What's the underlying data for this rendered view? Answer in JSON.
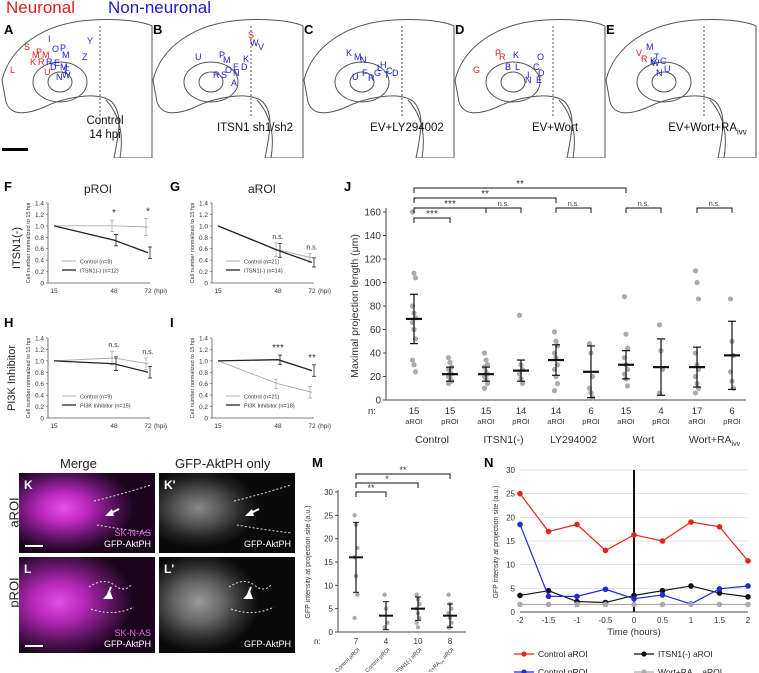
{
  "header": {
    "neuronal": "Neuronal",
    "non_neuronal": "Non-neuronal"
  },
  "colors": {
    "neuronal": "#e0201b",
    "non_neuronal": "#1a1ad6",
    "control_aroi": "#e8231c",
    "itsn1_aroi": "#111111",
    "control_proi": "#1f2bd8",
    "wort_ra_aroi": "#aaaaaa",
    "sknas": "#e23be8"
  },
  "panel_labels": {
    "A": "A",
    "B": "B",
    "C": "C",
    "D": "D",
    "E": "E",
    "F": "F",
    "G": "G",
    "H": "H",
    "I": "I",
    "J": "J",
    "K": "K",
    "Kp": "K'",
    "L": "L",
    "Lp": "L'",
    "M": "M",
    "N": "N"
  },
  "embryos": [
    {
      "line1": "Control",
      "line2": "14 hpi"
    },
    {
      "line1": "ITSN1 sh1/sh2",
      "line2": ""
    },
    {
      "line1": "EV+LY294002",
      "line2": ""
    },
    {
      "line1": "EV+Wort",
      "line2": ""
    },
    {
      "line1": "EV+Wort+RA",
      "sub": "ivv"
    }
  ],
  "embryo_letters": {
    "A": {
      "red": [
        "L",
        "S",
        "M",
        "P",
        "R",
        "K",
        "M",
        "U"
      ],
      "blue": [
        "I",
        "O",
        "P",
        "M",
        "Y",
        "Z",
        "R",
        "E",
        "D",
        "M",
        "W",
        "F",
        "N"
      ]
    },
    "B": {
      "red": [
        "S"
      ],
      "blue": [
        "U",
        "W",
        "V",
        "M",
        "P",
        "O",
        "R",
        "S",
        "K",
        "E",
        "A",
        "N",
        "D"
      ]
    },
    "C": {
      "red": [],
      "blue": [
        "K",
        "M",
        "N",
        "R",
        "U",
        "F",
        "T",
        "G",
        "D",
        "L",
        "C",
        "H"
      ]
    },
    "D": {
      "red": [
        "G",
        "P",
        "R"
      ],
      "blue": [
        "B",
        "K",
        "O",
        "L",
        "C",
        "D",
        "E",
        "N",
        "I"
      ]
    },
    "E": {
      "red": [
        "V",
        "R"
      ],
      "blue": [
        "M",
        "T",
        "C",
        "W",
        "U",
        "N",
        "K"
      ]
    }
  },
  "small_charts": {
    "x_ticks": [
      "15",
      "48",
      "72"
    ],
    "x_unit": "(hpi)",
    "y_ticks": [
      "0",
      "0.2",
      "0.4",
      "0.6",
      "0.8",
      "1.0",
      "1.2",
      "1.4"
    ],
    "ylabel": "Cell number normalized to 15 hpi",
    "F": {
      "title": "pROI",
      "row_label": "ITSN1(-)",
      "legend": [
        "Control (n=9)",
        "ITSN1(-) (n=12)"
      ],
      "sig": [
        "*",
        "*"
      ]
    },
    "G": {
      "title": "aROI",
      "legend": [
        "Control (n=21)",
        "ITSN1(-) (n=14)"
      ],
      "sig": [
        "n.s.",
        "n.s."
      ]
    },
    "H": {
      "row_label": "PI3K Inhibitor",
      "legend": [
        "Control (n=9)",
        "PI3K Inhibitor (n=15)"
      ],
      "sig": [
        "n.s.",
        "n.s."
      ]
    },
    "I": {
      "legend": [
        "Control (n=21)",
        "PI3K Inhibitor (n=18)"
      ],
      "sig": [
        "***",
        "**"
      ]
    }
  },
  "chart_data": [
    {
      "id": "F",
      "type": "line",
      "x": [
        15,
        48,
        72
      ],
      "ylim": [
        0,
        1.4
      ],
      "series": [
        {
          "name": "Control (n=9)",
          "values": [
            1.0,
            1.0,
            0.98
          ],
          "err": [
            0,
            0.1,
            0.15
          ]
        },
        {
          "name": "ITSN1(-) (n=12)",
          "values": [
            1.0,
            0.75,
            0.53
          ],
          "err": [
            0,
            0.1,
            0.1
          ]
        }
      ]
    },
    {
      "id": "G",
      "type": "line",
      "x": [
        15,
        48,
        72
      ],
      "ylim": [
        0,
        1.4
      ],
      "series": [
        {
          "name": "Control (n=21)",
          "values": [
            1.0,
            0.58,
            0.44
          ],
          "err": [
            0,
            0.12,
            0.08
          ]
        },
        {
          "name": "ITSN1(-) (n=14)",
          "values": [
            1.0,
            0.57,
            0.36
          ],
          "err": [
            0,
            0.12,
            0.08
          ]
        }
      ]
    },
    {
      "id": "H",
      "type": "line",
      "x": [
        15,
        48,
        72
      ],
      "ylim": [
        0,
        1.4
      ],
      "series": [
        {
          "name": "Control (n=9)",
          "values": [
            1.0,
            1.05,
            0.95
          ],
          "err": [
            0,
            0.12,
            0.1
          ]
        },
        {
          "name": "PI3K Inhibitor (n=15)",
          "values": [
            1.0,
            0.95,
            0.8
          ],
          "err": [
            0,
            0.12,
            0.1
          ]
        }
      ]
    },
    {
      "id": "I",
      "type": "line",
      "x": [
        15,
        48,
        72
      ],
      "ylim": [
        0,
        1.4
      ],
      "series": [
        {
          "name": "Control (n=21)",
          "values": [
            1.0,
            0.6,
            0.45
          ],
          "err": [
            0,
            0.08,
            0.1
          ]
        },
        {
          "name": "PI3K Inhibitor (n=18)",
          "values": [
            1.0,
            1.02,
            0.83
          ],
          "err": [
            0,
            0.08,
            0.1
          ]
        }
      ]
    },
    {
      "id": "J",
      "type": "scatter",
      "ylabel": "Maximal projection length (μm)",
      "ylim": [
        0,
        160
      ],
      "y_ticks": [
        "0",
        "20",
        "40",
        "60",
        "80",
        "100",
        "120",
        "140",
        "160"
      ],
      "n_label": "n:",
      "groups": [
        {
          "n": "15",
          "roi": "aROI",
          "mean": 69,
          "sd": 21,
          "points": [
            160,
            108,
            104,
            80,
            74,
            70,
            66,
            60,
            52,
            34,
            30,
            24
          ]
        },
        {
          "n": "15",
          "roi": "pROI",
          "mean": 22,
          "sd": 6,
          "points": [
            36,
            32,
            28,
            26,
            24,
            22,
            20,
            18,
            16,
            14
          ]
        },
        {
          "n": "15",
          "roi": "aROI",
          "mean": 22,
          "sd": 6,
          "points": [
            40,
            34,
            30,
            28,
            24,
            22,
            20,
            18,
            14,
            10
          ]
        },
        {
          "n": "14",
          "roi": "pROI",
          "mean": 25,
          "sd": 9,
          "points": [
            72,
            30,
            26,
            22,
            18,
            14
          ]
        },
        {
          "n": "14",
          "roi": "aROI",
          "mean": 34,
          "sd": 13,
          "points": [
            58,
            50,
            46,
            40,
            36,
            30,
            26,
            20,
            14,
            8
          ]
        },
        {
          "n": "6",
          "roi": "pROI",
          "mean": 24,
          "sd": 22,
          "points": [
            48,
            40,
            20,
            10,
            6,
            2
          ]
        },
        {
          "n": "15",
          "roi": "aROI",
          "mean": 30,
          "sd": 12,
          "points": [
            88,
            56,
            44,
            36,
            30,
            26,
            22,
            18,
            12
          ]
        },
        {
          "n": "4",
          "roi": "pROI",
          "mean": 28,
          "sd": 24,
          "points": [
            64,
            42,
            26,
            6
          ]
        },
        {
          "n": "17",
          "roi": "aROI",
          "mean": 28,
          "sd": 17,
          "points": [
            110,
            100,
            86,
            40,
            30,
            26,
            20,
            14,
            10,
            6
          ]
        },
        {
          "n": "6",
          "roi": "pROI",
          "mean": 38,
          "sd": 29,
          "points": [
            86,
            50,
            38,
            24,
            16,
            10
          ]
        }
      ],
      "group_labels": [
        "Control",
        "ITSN1(-)",
        "LY294002",
        "Wort",
        "Wort+RA"
      ],
      "group_label_sub": "ivv",
      "brackets": [
        {
          "label": "**",
          "level": 5
        },
        {
          "label": "**",
          "level": 4
        },
        {
          "label": "***",
          "level": 3
        },
        {
          "label": "***",
          "level": 2
        }
      ],
      "pair_sig": [
        "***",
        "n.s.",
        "n.s.",
        "n.s.",
        "n.s."
      ]
    },
    {
      "id": "M",
      "type": "scatter",
      "ylabel": "GFP intensity at projection site (a.u.)",
      "ylim": [
        0,
        30
      ],
      "y_ticks": [
        "0",
        "5",
        "10",
        "15",
        "20",
        "25",
        "30"
      ],
      "n_label": "n:",
      "groups": [
        {
          "n": "7",
          "name": "Control aROI",
          "mean": 16,
          "sd": 7.5,
          "points": [
            25,
            23,
            18,
            16,
            12,
            8,
            3
          ]
        },
        {
          "n": "4",
          "name": "Control pROI",
          "mean": 3.5,
          "sd": 3,
          "points": [
            8,
            5,
            2,
            1
          ]
        },
        {
          "n": "10",
          "name": "ITSN1(-) aROI",
          "mean": 5,
          "sd": 2.5,
          "points": [
            8,
            7,
            6,
            5,
            4,
            3,
            2,
            1
          ]
        },
        {
          "n": "8",
          "name": "Wort+RA",
          "sub": "ivv",
          "suffix": " aROI",
          "mean": 3.5,
          "sd": 2.5,
          "points": [
            8,
            6,
            5,
            4,
            3,
            2,
            1,
            1
          ]
        }
      ],
      "brackets": [
        "**",
        "*",
        "**"
      ]
    },
    {
      "id": "N",
      "type": "line",
      "xlabel": "Time (hours)",
      "ylabel": "GFP intensity at projection site (a.u.)",
      "ylim": [
        0,
        30
      ],
      "x": [
        -2,
        -1.5,
        -1,
        -0.5,
        0,
        0.5,
        1,
        1.5,
        2
      ],
      "x_ticks": [
        "-2",
        "-1.5",
        "-1",
        "-0.5",
        "0",
        "0.5",
        "1",
        "1.5",
        "2"
      ],
      "y_ticks": [
        "0",
        "5",
        "10",
        "15",
        "20",
        "25",
        "30"
      ],
      "series": [
        {
          "name": "Control aROI",
          "values": [
            25,
            17,
            18.5,
            13,
            16.3,
            15,
            19,
            18,
            10.8
          ]
        },
        {
          "name": "ITSN1(-) aROI",
          "values": [
            3.5,
            4.5,
            2.2,
            2,
            3.5,
            4.5,
            5.5,
            4,
            3.2
          ]
        },
        {
          "name": "Control pROI",
          "values": [
            18.5,
            3.3,
            3.3,
            4.8,
            2.8,
            3.6,
            1.7,
            4.9,
            5.5
          ]
        },
        {
          "name": "Wort+RA",
          "sub": "ivv",
          "suffix": " aROI",
          "values": [
            1.6,
            1.6,
            1.6,
            1.6,
            1.6,
            1.6,
            1.6,
            1.6,
            1.6
          ]
        }
      ]
    }
  ],
  "micro": {
    "col_merge": "Merge",
    "col_gfp": "GFP-AktPH only",
    "row_a": "aROI",
    "row_p": "pROI",
    "lbl_sknas": "SK-N-AS",
    "lbl_gfp": "GFP-AktPH"
  }
}
